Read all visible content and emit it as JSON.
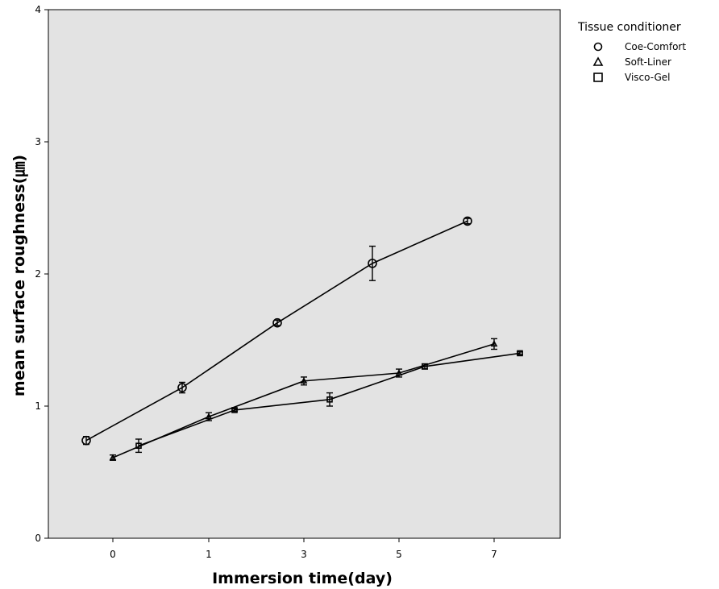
{
  "chart_data": {
    "type": "line",
    "xlabel": "Immersion time(day)",
    "ylabel": "mean surface roughness(㎛)",
    "ylim": [
      0,
      4
    ],
    "x_categories": [
      "0",
      "1",
      "3",
      "5",
      "7"
    ],
    "y_ticks": [
      "0",
      "1",
      "2",
      "3",
      "4"
    ],
    "grid": false,
    "legend": {
      "title": "Tissue conditioner",
      "placement": "top-right outside plot"
    },
    "series": [
      {
        "name": "Coe-Comfort",
        "marker": "circle",
        "x": [
          "0",
          "1",
          "3",
          "5",
          "7"
        ],
        "values": [
          0.74,
          1.14,
          1.63,
          2.08,
          2.4
        ],
        "error": [
          0.03,
          0.04,
          0.02,
          0.13,
          0.02
        ]
      },
      {
        "name": "Soft-Liner",
        "marker": "triangle",
        "x": [
          "0",
          "1",
          "3",
          "5",
          "7"
        ],
        "values": [
          0.61,
          0.92,
          1.19,
          1.25,
          1.47
        ],
        "error": [
          0.02,
          0.03,
          0.03,
          0.03,
          0.04
        ]
      },
      {
        "name": "Visco-Gel",
        "marker": "square",
        "x": [
          "0",
          "1",
          "3",
          "5",
          "7"
        ],
        "values": [
          0.7,
          0.97,
          1.05,
          1.3,
          1.4
        ],
        "error": [
          0.05,
          0.01,
          0.05,
          0.02,
          0.01
        ]
      }
    ]
  }
}
